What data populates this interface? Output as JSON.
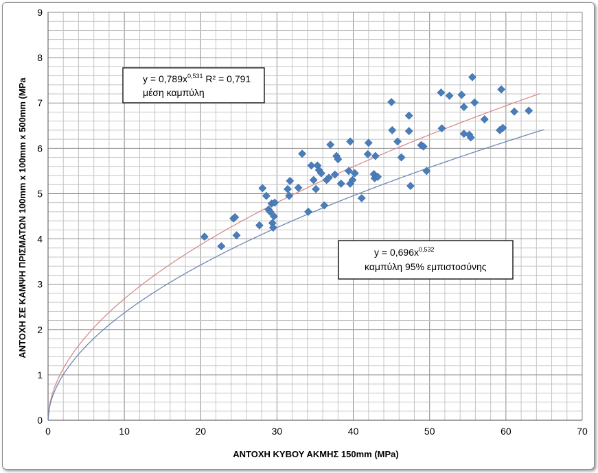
{
  "chart_data": {
    "type": "scatter",
    "title": "",
    "xlabel": "ΑΝΤΟΧΗ  ΚΥΒΟΥ ΑΚΜΗΣ 150mm (MPa)",
    "ylabel": "ΑΝΤΟΧΗ ΣΕ ΚΑΜΨΗ ΠΡΙΣΜΑΤΩΝ 100mm x 100mm x 500mm (MPa",
    "xlim": [
      0,
      70
    ],
    "ylim": [
      0,
      9
    ],
    "x_ticks": [
      "0",
      "10",
      "20",
      "30",
      "40",
      "50",
      "60",
      "70"
    ],
    "y_ticks": [
      "0",
      "1",
      "2",
      "3",
      "4",
      "5",
      "6",
      "7",
      "8",
      "9"
    ],
    "grid": true,
    "legend": "none",
    "series": [
      {
        "type": "scatter",
        "color": "#4a7ebb",
        "marker": "diamond",
        "points": [
          [
            20.5,
            4.05
          ],
          [
            22.7,
            3.84
          ],
          [
            24.3,
            4.45
          ],
          [
            24.5,
            4.48
          ],
          [
            24.7,
            4.08
          ],
          [
            27.7,
            4.3
          ],
          [
            28.1,
            5.12
          ],
          [
            28.6,
            4.95
          ],
          [
            28.9,
            4.65
          ],
          [
            29.1,
            4.6
          ],
          [
            29.3,
            4.78
          ],
          [
            29.4,
            4.35
          ],
          [
            29.5,
            4.25
          ],
          [
            29.6,
            4.5
          ],
          [
            29.7,
            4.8
          ],
          [
            31.4,
            5.1
          ],
          [
            31.6,
            4.95
          ],
          [
            31.7,
            5.28
          ],
          [
            32.8,
            5.13
          ],
          [
            33.3,
            5.88
          ],
          [
            34.1,
            4.6
          ],
          [
            34.5,
            5.62
          ],
          [
            34.8,
            5.3
          ],
          [
            35.1,
            5.1
          ],
          [
            35.3,
            5.62
          ],
          [
            35.5,
            5.52
          ],
          [
            35.8,
            5.45
          ],
          [
            36.2,
            4.74
          ],
          [
            36.5,
            5.3
          ],
          [
            36.8,
            5.35
          ],
          [
            37.0,
            6.08
          ],
          [
            37.6,
            5.42
          ],
          [
            37.8,
            5.83
          ],
          [
            38.0,
            5.76
          ],
          [
            38.4,
            5.22
          ],
          [
            39.4,
            5.5
          ],
          [
            39.6,
            6.15
          ],
          [
            39.6,
            5.22
          ],
          [
            39.9,
            5.3
          ],
          [
            40.2,
            5.45
          ],
          [
            41.1,
            4.9
          ],
          [
            41.9,
            5.87
          ],
          [
            42.0,
            6.12
          ],
          [
            42.7,
            5.43
          ],
          [
            42.8,
            5.34
          ],
          [
            42.9,
            5.83
          ],
          [
            43.2,
            5.37
          ],
          [
            45.0,
            7.02
          ],
          [
            45.1,
            6.4
          ],
          [
            45.8,
            6.15
          ],
          [
            46.3,
            5.8
          ],
          [
            47.3,
            6.72
          ],
          [
            47.3,
            6.38
          ],
          [
            47.5,
            5.17
          ],
          [
            48.9,
            6.07
          ],
          [
            49.2,
            6.04
          ],
          [
            49.6,
            5.5
          ],
          [
            51.5,
            7.23
          ],
          [
            51.6,
            6.44
          ],
          [
            52.6,
            7.16
          ],
          [
            54.2,
            7.18
          ],
          [
            54.5,
            6.91
          ],
          [
            54.5,
            6.32
          ],
          [
            55.2,
            6.3
          ],
          [
            55.4,
            6.24
          ],
          [
            55.6,
            7.57
          ],
          [
            55.9,
            7.01
          ],
          [
            57.2,
            6.64
          ],
          [
            59.2,
            6.4
          ],
          [
            59.4,
            7.3
          ],
          [
            59.6,
            6.45
          ],
          [
            61.1,
            6.81
          ],
          [
            63.0,
            6.83
          ]
        ]
      },
      {
        "type": "line",
        "equation": "y = 0,789x^0,531",
        "a": 0.789,
        "b": 0.531,
        "x_range": [
          0,
          64.5
        ],
        "color": "#d98c8c"
      },
      {
        "type": "line",
        "equation": "y = 0,696x^0,532",
        "a": 0.696,
        "b": 0.532,
        "x_range": [
          0,
          65
        ],
        "color": "#6d87b4"
      }
    ],
    "annotations": [
      {
        "line1_prefix": "y = 0,789x",
        "line1_exp": "0,531",
        "line1_suffix": " R² = 0,791",
        "line2": "μέση καμπύλη"
      },
      {
        "line1_prefix": "y = 0,696x",
        "line1_exp": "0,532",
        "line1_suffix": "",
        "line2": "καμπύλη 95% εμπιστοσύνης"
      }
    ]
  }
}
